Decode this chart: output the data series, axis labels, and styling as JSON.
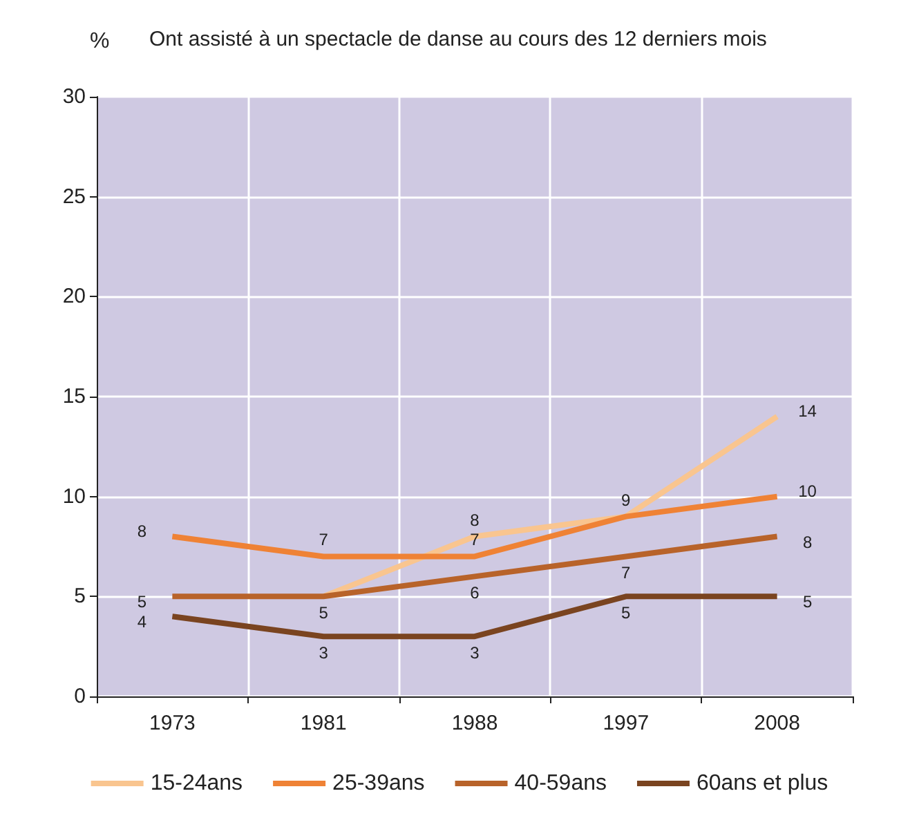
{
  "chart_data": {
    "type": "line",
    "title": "Ont assisté à un spectacle de danse au cours des 12 derniers mois",
    "ylabel": "%",
    "categories": [
      "1973",
      "1981",
      "1988",
      "1997",
      "2008"
    ],
    "series": [
      {
        "name": "15-24ans",
        "color": "#f9c58f",
        "values": [
          null,
          5,
          8,
          9,
          14
        ],
        "value_labels": [
          null,
          null,
          "8",
          null,
          "14"
        ]
      },
      {
        "name": "25-39ans",
        "color": "#ef8235",
        "values": [
          8,
          7,
          7,
          9,
          10
        ],
        "value_labels": [
          "8",
          "7",
          "7",
          "9",
          "10"
        ]
      },
      {
        "name": "40-59ans",
        "color": "#b8632a",
        "values": [
          5,
          5,
          6,
          7,
          8
        ],
        "value_labels": [
          "5",
          "5",
          "6",
          "7",
          "8"
        ]
      },
      {
        "name": "60ans et plus",
        "color": "#7a4420",
        "values": [
          4,
          3,
          3,
          5,
          5
        ],
        "value_labels": [
          "4",
          "3",
          "3",
          "5",
          "5"
        ]
      }
    ],
    "ylim": [
      0,
      30
    ],
    "yticks": [
      0,
      5,
      10,
      15,
      20,
      25,
      30
    ],
    "grid": true,
    "legend": "bottom",
    "marker": "none",
    "line_style": "solid"
  }
}
